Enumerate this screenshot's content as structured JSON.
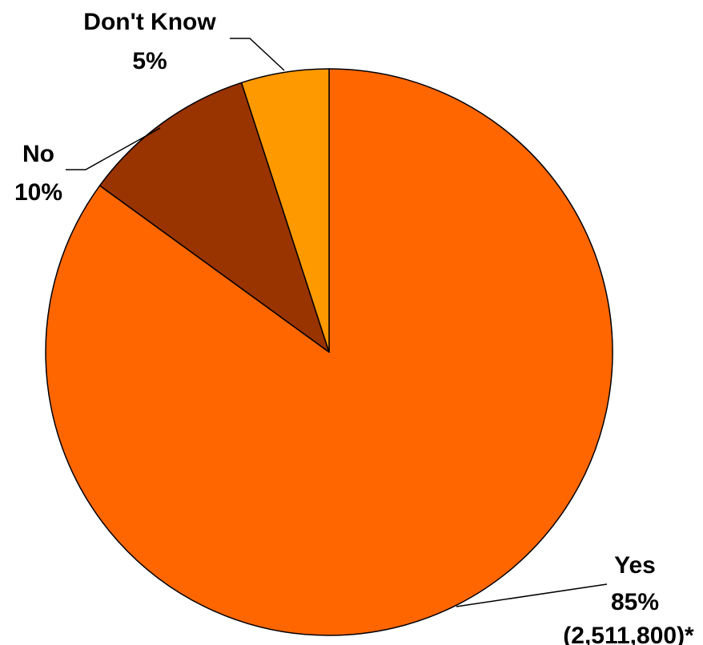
{
  "chart_data": {
    "type": "pie",
    "slices": [
      {
        "label": "Yes",
        "value": 85,
        "value_label": "85%",
        "extra_label": "(2,511,800)*",
        "color": "#FF6600"
      },
      {
        "label": "No",
        "value": 10,
        "value_label": "10%",
        "color": "#993300"
      },
      {
        "label": "Don't Know",
        "value": 5,
        "value_label": "5%",
        "color": "#FF9900"
      }
    ],
    "start_angle_deg": 0,
    "direction": "clockwise"
  }
}
